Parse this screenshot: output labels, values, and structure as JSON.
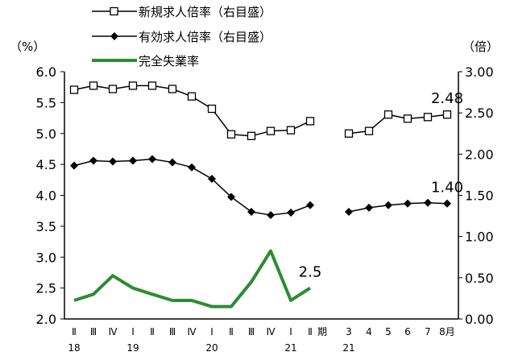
{
  "chart_data": {
    "type": "line",
    "left_axis_label": "（%）",
    "right_axis_label": "（倍）",
    "left_ylim": [
      2.0,
      6.0
    ],
    "right_ylim": [
      0.0,
      3.0
    ],
    "left_ticks": [
      "6.0",
      "5.5",
      "5.0",
      "4.5",
      "4.0",
      "3.5",
      "3.0",
      "2.5",
      "2.0"
    ],
    "right_ticks": [
      "3.00",
      "2.50",
      "2.00",
      "1.50",
      "1.00",
      "0.50",
      "0.00"
    ],
    "categories": [
      "Ⅱ",
      "Ⅲ",
      "Ⅳ",
      "Ⅰ",
      "Ⅱ",
      "Ⅲ",
      "Ⅳ",
      "Ⅰ",
      "Ⅱ",
      "Ⅲ",
      "Ⅳ",
      "Ⅰ",
      "Ⅱ",
      "期",
      "3",
      "4",
      "5",
      "6",
      "7",
      "8月"
    ],
    "year_labels": [
      {
        "text": "18",
        "index": 0
      },
      {
        "text": "19",
        "index": 3
      },
      {
        "text": "20",
        "index": 7
      },
      {
        "text": "21",
        "index": 11
      },
      {
        "text": "21",
        "index": 14
      }
    ],
    "legend": [
      {
        "label": "新規求人倍率（右目盛）",
        "marker": "square"
      },
      {
        "label": "有効求人倍率（右目盛）",
        "marker": "diamond"
      },
      {
        "label": "完全失業率",
        "marker": "none"
      }
    ],
    "series": [
      {
        "name": "新規求人倍率（右目盛）",
        "axis": "right",
        "color": "#000000",
        "marker": "square",
        "segments": [
          {
            "start_index": 0,
            "values": [
              2.78,
              2.83,
              2.79,
              2.83,
              2.83,
              2.79,
              2.7,
              2.55,
              2.24,
              2.22,
              2.28,
              2.29,
              2.4
            ]
          },
          {
            "start_index": 14,
            "values": [
              2.25,
              2.28,
              2.48,
              2.43,
              2.45,
              2.48
            ]
          }
        ]
      },
      {
        "name": "有効求人倍率（右目盛）",
        "axis": "right",
        "color": "#000000",
        "marker": "diamond",
        "segments": [
          {
            "start_index": 0,
            "values": [
              1.86,
              1.92,
              1.91,
              1.92,
              1.94,
              1.9,
              1.84,
              1.7,
              1.48,
              1.3,
              1.26,
              1.29,
              1.38
            ]
          },
          {
            "start_index": 14,
            "values": [
              1.3,
              1.35,
              1.38,
              1.4,
              1.41,
              1.4
            ]
          }
        ]
      },
      {
        "name": "完全失業率",
        "axis": "left",
        "color": "#2e8b32",
        "marker": "none",
        "segments": [
          {
            "start_index": 0,
            "values": [
              2.3,
              2.4,
              2.7,
              2.5,
              2.4,
              2.3,
              2.3,
              2.2,
              2.2,
              2.6,
              3.1,
              2.3,
              2.5
            ]
          }
        ]
      }
    ],
    "annotations": [
      {
        "text": "2.48",
        "series": 0,
        "point": "last"
      },
      {
        "text": "1.40",
        "series": 1,
        "point": "last"
      },
      {
        "text": "2.5",
        "series": 2,
        "point": "last"
      }
    ]
  }
}
